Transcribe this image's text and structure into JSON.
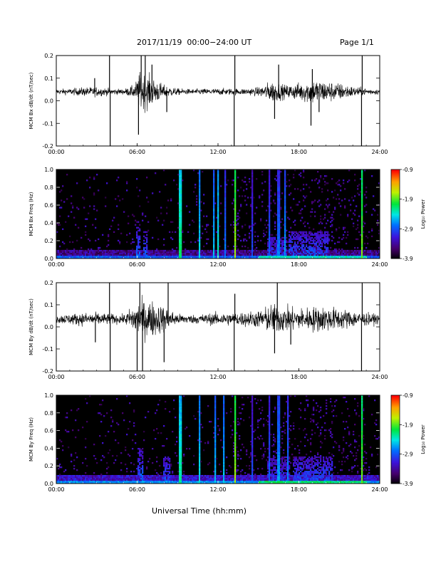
{
  "header": {
    "title": "2017/11/19  00:00−24:00 UT",
    "page": "Page 1/1"
  },
  "footer": {
    "xlabel": "Universal Time (hh:mm)"
  },
  "colors": {
    "trace": "#000000",
    "background": "#000000"
  },
  "chart_data": [
    {
      "type": "line",
      "panel": "bx-derivative",
      "ylabel": "MCM Bx dB/dt (nT/sec)",
      "xlim": [
        0,
        24
      ],
      "ylim": [
        -0.2,
        0.2
      ],
      "xticks": [
        "00:00",
        "06:00",
        "12:00",
        "18:00",
        "24:00"
      ],
      "yticks": [
        "-0.2",
        "-0.1",
        "0.0",
        "0.1",
        "0.2"
      ],
      "baseline": 0.04,
      "noise_envelope": [
        {
          "t": 0,
          "amp": 0.012
        },
        {
          "t": 1,
          "amp": 0.014
        },
        {
          "t": 2,
          "amp": 0.02
        },
        {
          "t": 3,
          "amp": 0.022
        },
        {
          "t": 4,
          "amp": 0.015
        },
        {
          "t": 5,
          "amp": 0.012
        },
        {
          "t": 5.8,
          "amp": 0.03
        },
        {
          "t": 6.2,
          "amp": 0.09
        },
        {
          "t": 7,
          "amp": 0.07
        },
        {
          "t": 8,
          "amp": 0.03
        },
        {
          "t": 9,
          "amp": 0.015
        },
        {
          "t": 10,
          "amp": 0.012
        },
        {
          "t": 11,
          "amp": 0.014
        },
        {
          "t": 12,
          "amp": 0.015
        },
        {
          "t": 13,
          "amp": 0.015
        },
        {
          "t": 14,
          "amp": 0.015
        },
        {
          "t": 15,
          "amp": 0.02
        },
        {
          "t": 16,
          "amp": 0.05
        },
        {
          "t": 17,
          "amp": 0.03
        },
        {
          "t": 18,
          "amp": 0.04
        },
        {
          "t": 19,
          "amp": 0.06
        },
        {
          "t": 20,
          "amp": 0.05
        },
        {
          "t": 21,
          "amp": 0.04
        },
        {
          "t": 22,
          "amp": 0.025
        },
        {
          "t": 23,
          "amp": 0.015
        },
        {
          "t": 24,
          "amp": 0.012
        }
      ],
      "spikes": [
        {
          "t": 2.85,
          "value": 0.1
        },
        {
          "t": 3.95,
          "value": 0.2
        },
        {
          "t": 4.0,
          "value": -0.2
        },
        {
          "t": 6.1,
          "value": -0.15
        },
        {
          "t": 6.3,
          "value": 0.2
        },
        {
          "t": 6.6,
          "value": 0.2
        },
        {
          "t": 7.1,
          "value": 0.16
        },
        {
          "t": 8.2,
          "value": -0.05
        },
        {
          "t": 13.2,
          "value": -0.2
        },
        {
          "t": 13.25,
          "value": 0.2
        },
        {
          "t": 16.2,
          "value": -0.08
        },
        {
          "t": 16.5,
          "value": 0.16
        },
        {
          "t": 18.9,
          "value": -0.11
        },
        {
          "t": 19.0,
          "value": 0.14
        },
        {
          "t": 19.5,
          "value": -0.05
        },
        {
          "t": 22.65,
          "value": -0.2
        },
        {
          "t": 22.7,
          "value": 0.2
        }
      ]
    },
    {
      "type": "heatmap",
      "panel": "bx-spectrogram",
      "ylabel": "MCM Bx Freq (Hz)",
      "colorbar_label": "Log₁₀ Power",
      "colorbar_ticks": [
        "-0.9",
        "-1.9",
        "-2.9",
        "-3.9"
      ],
      "color_range": [
        -3.9,
        -0.9
      ],
      "xlim": [
        0,
        24
      ],
      "ylim": [
        0,
        1
      ],
      "xticks": [
        "00:00",
        "06:00",
        "12:00",
        "18:00",
        "24:00"
      ],
      "yticks": [
        "0.0",
        "0.2",
        "0.4",
        "0.6",
        "0.8",
        "1.0"
      ],
      "floor_power": -3.5,
      "bursts": [
        {
          "t": 6.1,
          "width": 0.3,
          "fmax": 0.35,
          "power": -2.9
        },
        {
          "t": 6.6,
          "width": 0.3,
          "fmax": 0.3,
          "power": -3.0
        },
        {
          "t": 18.7,
          "width": 3.0,
          "fmax": 0.3,
          "power": -3.0
        },
        {
          "t": 16.4,
          "width": 1.5,
          "fmax": 0.25,
          "power": -3.1
        }
      ],
      "stripes": [
        {
          "t": 9.2,
          "power": -2.2
        },
        {
          "t": 10.6,
          "power": -2.5
        },
        {
          "t": 11.7,
          "power": -2.6
        },
        {
          "t": 12.0,
          "power": -2.4
        },
        {
          "t": 12.5,
          "power": -2.8
        },
        {
          "t": 13.25,
          "power": -1.8
        },
        {
          "t": 14.5,
          "power": -3.0
        },
        {
          "t": 15.8,
          "power": -2.9
        },
        {
          "t": 16.5,
          "power": -2.8
        },
        {
          "t": 17.0,
          "power": -2.7
        },
        {
          "t": 22.65,
          "power": -1.9
        }
      ]
    },
    {
      "type": "line",
      "panel": "by-derivative",
      "ylabel": "MCM By dB/dt (nT/sec)",
      "xlim": [
        0,
        24
      ],
      "ylim": [
        -0.2,
        0.2
      ],
      "xticks": [
        "00:00",
        "06:00",
        "12:00",
        "18:00",
        "24:00"
      ],
      "yticks": [
        "-0.2",
        "-0.1",
        "0.0",
        "0.1",
        "0.2"
      ],
      "baseline": 0.035,
      "noise_envelope": [
        {
          "t": 0,
          "amp": 0.02
        },
        {
          "t": 1,
          "amp": 0.025
        },
        {
          "t": 2,
          "amp": 0.03
        },
        {
          "t": 3,
          "amp": 0.03
        },
        {
          "t": 4,
          "amp": 0.025
        },
        {
          "t": 5,
          "amp": 0.02
        },
        {
          "t": 6,
          "amp": 0.08
        },
        {
          "t": 7,
          "amp": 0.09
        },
        {
          "t": 8,
          "amp": 0.06
        },
        {
          "t": 9,
          "amp": 0.025
        },
        {
          "t": 10,
          "amp": 0.02
        },
        {
          "t": 11,
          "amp": 0.025
        },
        {
          "t": 12,
          "amp": 0.03
        },
        {
          "t": 13,
          "amp": 0.03
        },
        {
          "t": 14,
          "amp": 0.035
        },
        {
          "t": 15,
          "amp": 0.04
        },
        {
          "t": 16,
          "amp": 0.07
        },
        {
          "t": 17,
          "amp": 0.06
        },
        {
          "t": 18,
          "amp": 0.05
        },
        {
          "t": 19,
          "amp": 0.06
        },
        {
          "t": 20,
          "amp": 0.06
        },
        {
          "t": 21,
          "amp": 0.05
        },
        {
          "t": 22,
          "amp": 0.04
        },
        {
          "t": 23,
          "amp": 0.03
        },
        {
          "t": 24,
          "amp": 0.02
        }
      ],
      "spikes": [
        {
          "t": 2.9,
          "value": -0.07
        },
        {
          "t": 3.95,
          "value": 0.2
        },
        {
          "t": 4.0,
          "value": -0.2
        },
        {
          "t": 6.0,
          "value": -0.2
        },
        {
          "t": 6.2,
          "value": 0.2
        },
        {
          "t": 6.4,
          "value": -0.2
        },
        {
          "t": 8.0,
          "value": -0.16
        },
        {
          "t": 8.3,
          "value": 0.2
        },
        {
          "t": 13.2,
          "value": -0.2
        },
        {
          "t": 13.25,
          "value": 0.15
        },
        {
          "t": 16.2,
          "value": -0.12
        },
        {
          "t": 16.4,
          "value": 0.2
        },
        {
          "t": 17.4,
          "value": -0.08
        },
        {
          "t": 22.65,
          "value": -0.2
        },
        {
          "t": 22.7,
          "value": 0.2
        }
      ]
    },
    {
      "type": "heatmap",
      "panel": "by-spectrogram",
      "ylabel": "MCM By Freq (Hz)",
      "colorbar_label": "Log₁₀ Power",
      "colorbar_ticks": [
        "-0.9",
        "-1.9",
        "-2.9",
        "-3.9"
      ],
      "color_range": [
        -3.9,
        -0.9
      ],
      "xlim": [
        0,
        24
      ],
      "ylim": [
        0,
        1
      ],
      "xticks": [
        "00:00",
        "06:00",
        "12:00",
        "18:00",
        "24:00"
      ],
      "yticks": [
        "0.0",
        "0.2",
        "0.4",
        "0.6",
        "0.8",
        "1.0"
      ],
      "floor_power": -3.3,
      "bursts": [
        {
          "t": 6.2,
          "width": 0.4,
          "fmax": 0.4,
          "power": -2.9
        },
        {
          "t": 8.2,
          "width": 0.5,
          "fmax": 0.3,
          "power": -3.0
        },
        {
          "t": 19.0,
          "width": 3.0,
          "fmax": 0.3,
          "power": -3.0
        },
        {
          "t": 16.5,
          "width": 1.6,
          "fmax": 0.3,
          "power": -3.1
        }
      ],
      "stripes": [
        {
          "t": 9.2,
          "power": -2.3
        },
        {
          "t": 10.6,
          "power": -2.5
        },
        {
          "t": 11.8,
          "power": -2.6
        },
        {
          "t": 12.4,
          "power": -2.6
        },
        {
          "t": 13.25,
          "power": -1.8
        },
        {
          "t": 14.5,
          "power": -3.0
        },
        {
          "t": 15.8,
          "power": -2.9
        },
        {
          "t": 16.5,
          "power": -2.7
        },
        {
          "t": 17.2,
          "power": -2.8
        },
        {
          "t": 22.65,
          "power": -1.9
        }
      ]
    }
  ]
}
